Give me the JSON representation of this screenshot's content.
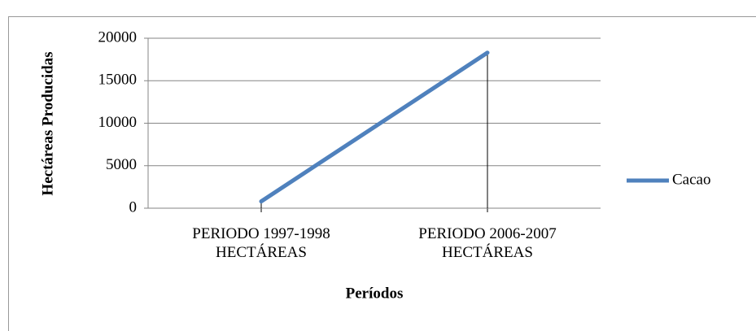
{
  "chart_data": {
    "type": "line",
    "categories": [
      "PERIODO 1997-1998\nHECTÁREAS",
      "PERIODO 2006-2007\nHECTÁREAS"
    ],
    "series": [
      {
        "name": "Cacao",
        "color": "#4f81bd",
        "values": [
          800,
          18300
        ]
      }
    ],
    "ylim": [
      0,
      20000
    ],
    "yticks": [
      0,
      5000,
      10000,
      15000,
      20000
    ],
    "y_label": "Hectáreas Producidas",
    "x_label": "Períodos",
    "grid": true,
    "legend": "right",
    "drop_lines": true
  }
}
